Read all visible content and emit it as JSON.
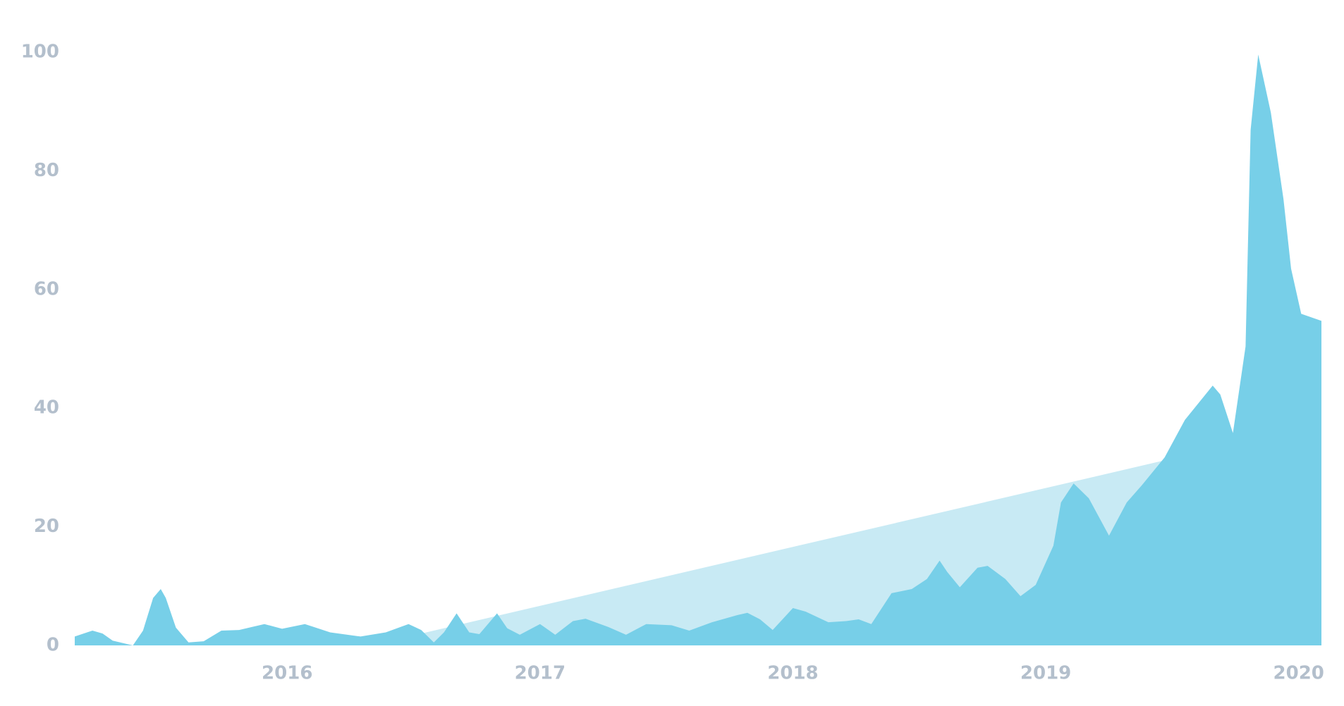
{
  "chart_data": {
    "type": "area",
    "xlim": [
      2015.16,
      2020.09
    ],
    "xticks": [
      2016,
      2017,
      2018,
      2019,
      2020
    ],
    "ylim": [
      0,
      100
    ],
    "yticks": [
      0,
      20,
      40,
      60,
      80,
      100
    ],
    "series": [
      {
        "color": "#c8eaf4",
        "x": [
          2016.51,
          2019.46
        ],
        "values": [
          1.8,
          31.1
        ]
      },
      {
        "color": "#77cfe8",
        "x": [
          2015.16,
          2015.23,
          2015.27,
          2015.31,
          2015.39,
          2015.43,
          2015.47,
          2015.5,
          2015.52,
          2015.56,
          2015.61,
          2015.67,
          2015.74,
          2015.81,
          2015.91,
          2015.98,
          2016.07,
          2016.17,
          2016.29,
          2016.39,
          2016.48,
          2016.53,
          2016.58,
          2016.62,
          2016.67,
          2016.72,
          2016.76,
          2016.83,
          2016.87,
          2016.92,
          2017.0,
          2017.06,
          2017.13,
          2017.18,
          2017.27,
          2017.34,
          2017.42,
          2017.52,
          2017.59,
          2017.68,
          2017.78,
          2017.82,
          2017.87,
          2017.92,
          2018.0,
          2018.05,
          2018.14,
          2018.21,
          2018.26,
          2018.31,
          2018.39,
          2018.47,
          2018.53,
          2018.58,
          2018.61,
          2018.66,
          2018.73,
          2018.77,
          2018.84,
          2018.9,
          2018.96,
          2019.03,
          2019.06,
          2019.11,
          2019.17,
          2019.25,
          2019.32,
          2019.38,
          2019.47,
          2019.55,
          2019.66,
          2019.69,
          2019.74,
          2019.79,
          2019.81,
          2019.84,
          2019.89,
          2019.94,
          2019.97,
          2020.01,
          2020.09
        ],
        "values": [
          1.5,
          2.5,
          2,
          0.8,
          0,
          2.5,
          8,
          9.5,
          8,
          3,
          0.5,
          0.7,
          2.5,
          2.6,
          3.6,
          2.8,
          3.6,
          2.2,
          1.5,
          2.2,
          3.6,
          2.6,
          0.5,
          2.2,
          5.4,
          2.2,
          1.9,
          5.4,
          2.9,
          1.8,
          3.6,
          1.8,
          4.1,
          4.5,
          3.1,
          1.8,
          3.6,
          3.4,
          2.5,
          3.9,
          5.1,
          5.5,
          4.4,
          2.6,
          6.3,
          5.7,
          3.9,
          4.1,
          4.4,
          3.6,
          8.8,
          9.5,
          11.2,
          14.3,
          12.4,
          9.8,
          13.1,
          13.4,
          11.2,
          8.3,
          10.2,
          16.8,
          24.1,
          27.3,
          24.8,
          18.5,
          24.1,
          27,
          31.7,
          38,
          43.8,
          42.3,
          35.8,
          50.4,
          86.9,
          99.6,
          89.8,
          75.2,
          63.5,
          55.9,
          54.7
        ]
      }
    ]
  }
}
